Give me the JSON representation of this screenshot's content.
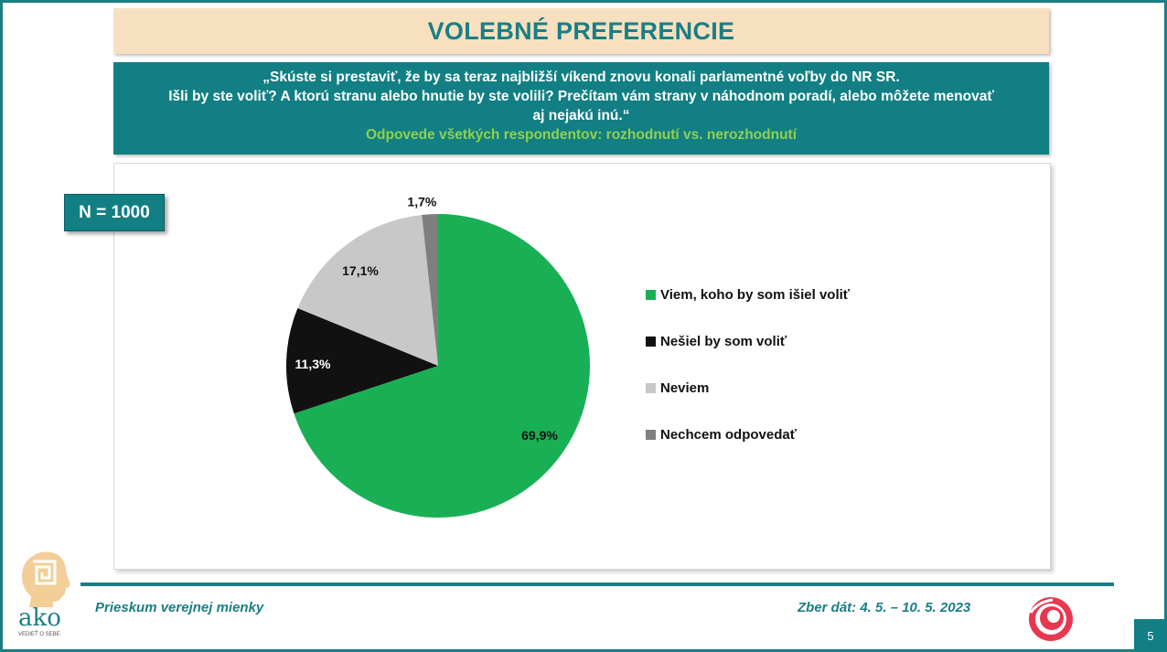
{
  "header": {
    "title": "VOLEBNÉ PREFERENCIE"
  },
  "question": {
    "line1": "„Skúste si prestaviť, že by sa teraz najbližší víkend znovu konali parlamentné voľby do NR SR.",
    "line2": "Išli by ste voliť? A ktorú stranu alebo hnutie by ste volili? Prečítam vám strany v náhodnom poradí, alebo môžete menovať",
    "line3": "aj nejakú inú.“",
    "subtitle": "Odpovede všetkých respondentov: rozhodnutí vs. nerozhodnutí"
  },
  "sample": {
    "label": "N = 1000"
  },
  "chart_data": {
    "type": "pie",
    "categories": [
      "Viem, koho by som išiel voliť",
      "Nešiel by som voliť",
      "Neviem",
      "Nechcem odpovedať"
    ],
    "values": [
      69.9,
      11.3,
      17.1,
      1.7
    ],
    "labels": [
      "69,9%",
      "11,3%",
      "17,1%",
      "1,7%"
    ],
    "colors": [
      "#19b055",
      "#111111",
      "#c8c8c8",
      "#7f7f7f"
    ],
    "label_colors": [
      "#111111",
      "#ffffff",
      "#111111",
      "#111111"
    ],
    "start_angle_deg": 0,
    "direction": "clockwise",
    "legend_position": "right"
  },
  "footer": {
    "survey": "Prieskum verejnej mienky",
    "dates": "Zber dát: 4. 5. – 10. 5. 2023",
    "page": "5"
  },
  "logo": {
    "text": "ako",
    "tagline": "VEDIEŤ O SEBE"
  }
}
